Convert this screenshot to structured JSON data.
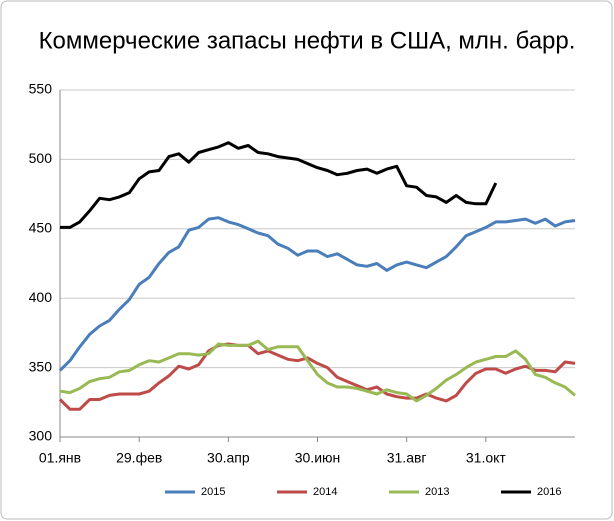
{
  "chart_data": {
    "type": "line",
    "title": "Коммерческие запасы нефти в США, млн. барр.",
    "categories": [
      "01.янв",
      null,
      null,
      null,
      null,
      null,
      null,
      null,
      "29.фев",
      null,
      null,
      null,
      null,
      null,
      null,
      null,
      null,
      "30.апр",
      null,
      null,
      null,
      null,
      null,
      null,
      null,
      null,
      "30.июн",
      null,
      null,
      null,
      null,
      null,
      null,
      null,
      null,
      "31.авг",
      null,
      null,
      null,
      null,
      null,
      null,
      null,
      "31.окт",
      null,
      null,
      null,
      null,
      null,
      null,
      null,
      null,
      null
    ],
    "series": [
      {
        "name": "2015",
        "color": "#4a7ebb",
        "values": [
          348,
          355,
          365,
          374,
          380,
          384,
          392,
          399,
          410,
          415,
          425,
          433,
          437,
          449,
          451,
          457,
          458,
          455,
          453,
          450,
          447,
          445,
          439,
          436,
          431,
          434,
          434,
          430,
          432,
          428,
          424,
          423,
          425,
          420,
          424,
          426,
          424,
          422,
          426,
          430,
          437,
          445,
          448,
          451,
          455,
          455,
          456,
          457,
          454,
          457,
          452,
          455,
          456
        ]
      },
      {
        "name": "2014",
        "color": "#be4b48",
        "values": [
          327,
          320,
          320,
          327,
          327,
          330,
          331,
          331,
          331,
          333,
          339,
          344,
          351,
          349,
          352,
          362,
          366,
          367,
          366,
          366,
          360,
          362,
          359,
          356,
          355,
          357,
          353,
          350,
          343,
          340,
          337,
          334,
          336,
          331,
          329,
          328,
          328,
          331,
          328,
          326,
          330,
          339,
          346,
          349,
          349,
          346,
          349,
          351,
          348,
          348,
          347,
          354,
          353
        ]
      },
      {
        "name": "2013",
        "color": "#98b954",
        "values": [
          333,
          332,
          335,
          340,
          342,
          343,
          347,
          348,
          352,
          355,
          354,
          357,
          360,
          360,
          359,
          360,
          367,
          366,
          366,
          366,
          369,
          363,
          365,
          365,
          365,
          355,
          345,
          339,
          336,
          336,
          335,
          333,
          331,
          334,
          332,
          331,
          326,
          330,
          335,
          341,
          345,
          350,
          354,
          356,
          358,
          358,
          362,
          356,
          345,
          343,
          339,
          336,
          330
        ]
      },
      {
        "name": "2016",
        "color": "#000000",
        "values": [
          451,
          451,
          455,
          463,
          472,
          471,
          473,
          476,
          486,
          491,
          492,
          502,
          504,
          498,
          505,
          507,
          509,
          512,
          508,
          510,
          505,
          504,
          502,
          501,
          500,
          497,
          494,
          492,
          489,
          490,
          492,
          493,
          490,
          493,
          495,
          481,
          480,
          474,
          473,
          469,
          474,
          469,
          468,
          468,
          483,
          null,
          null,
          null,
          null,
          null,
          null,
          null,
          null
        ]
      }
    ],
    "ylim": [
      300,
      550
    ],
    "yticks": [
      300,
      350,
      400,
      450,
      500,
      550
    ],
    "grid": true,
    "legend": "bottom"
  }
}
